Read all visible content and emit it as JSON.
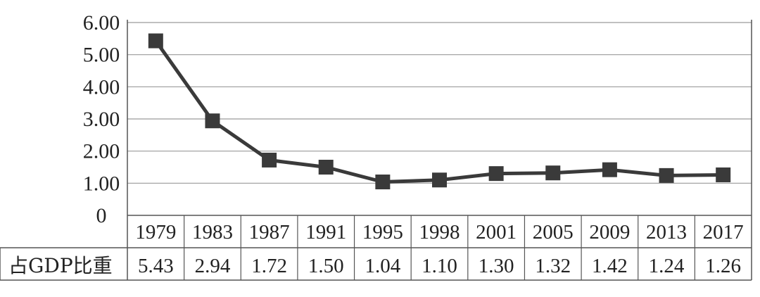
{
  "chart_data": {
    "type": "line",
    "categories": [
      "1979",
      "1983",
      "1987",
      "1991",
      "1995",
      "1998",
      "2001",
      "2005",
      "2009",
      "2013",
      "2017"
    ],
    "series": [
      {
        "name": "占GDP比重",
        "values": [
          5.43,
          2.94,
          1.72,
          1.5,
          1.04,
          1.1,
          1.3,
          1.32,
          1.42,
          1.24,
          1.26
        ]
      }
    ],
    "value_labels": [
      "5.43",
      "2.94",
      "1.72",
      "1.50",
      "1.04",
      "1.10",
      "1.30",
      "1.32",
      "1.42",
      "1.24",
      "1.26"
    ],
    "y_ticks": [
      "0",
      "1.00",
      "2.00",
      "3.00",
      "4.00",
      "5.00",
      "6.00"
    ],
    "ylim": [
      0,
      6
    ],
    "grid": true,
    "legend": "data-table-row",
    "colors": {
      "line": "#3a3a3a",
      "marker": "#3a3a3a",
      "grid": "#9a9a9a",
      "table": "#555555"
    }
  }
}
